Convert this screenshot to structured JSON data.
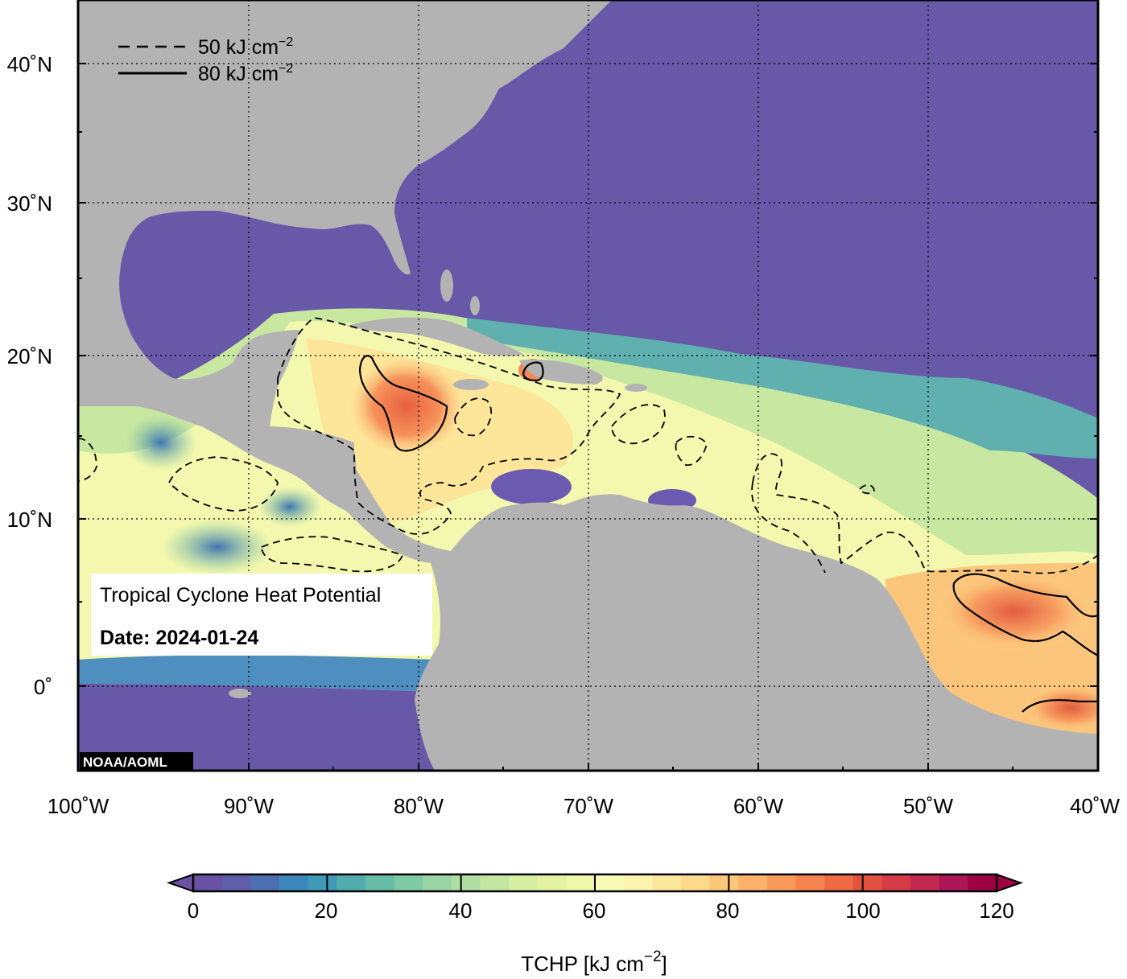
{
  "map": {
    "title": "Tropical Cyclone Heat Potential",
    "date_label": "Date: 2024-01-24",
    "credit": "NOAA/AOML",
    "extent": {
      "lon": [
        -100,
        -40
      ],
      "lat": [
        -5,
        44
      ]
    },
    "lat_labels": [
      "40˚N",
      "30˚N",
      "20˚N",
      "10˚N",
      "0˚"
    ],
    "lon_labels": [
      "100˚W",
      "90˚W",
      "80˚W",
      "70˚W",
      "60˚W",
      "50˚W",
      "40˚W"
    ],
    "land_color": "#b3b3b3",
    "ocean_cold_color": "#6758a8"
  },
  "legend": {
    "contour_50": {
      "prefix": "50 kJ cm",
      "sup": "−2"
    },
    "contour_80": {
      "prefix": "80 kJ cm",
      "sup": "−2"
    }
  },
  "colorbar": {
    "ticks": [
      "0",
      "20",
      "40",
      "60",
      "80",
      "100",
      "120"
    ],
    "label_prefix": "TCHP [kJ cm",
    "label_sup": "−2",
    "label_suffix": "]",
    "colors": [
      "#6a52a3",
      "#5e5ea9",
      "#4d70b0",
      "#3b87bb",
      "#3f9ab7",
      "#52acae",
      "#66bca6",
      "#7ecaa4",
      "#98d5a4",
      "#afdea3",
      "#c3e6a0",
      "#d5ee9f",
      "#e3f3a2",
      "#eff8aa",
      "#f8fbb5",
      "#fdf4b0",
      "#fee89e",
      "#fed98b",
      "#fdc77a",
      "#fcb26b",
      "#f99a5d",
      "#f5834f",
      "#ee6b45",
      "#e2533f",
      "#d53c47",
      "#c22950",
      "#ab1656",
      "#9e0142"
    ]
  }
}
